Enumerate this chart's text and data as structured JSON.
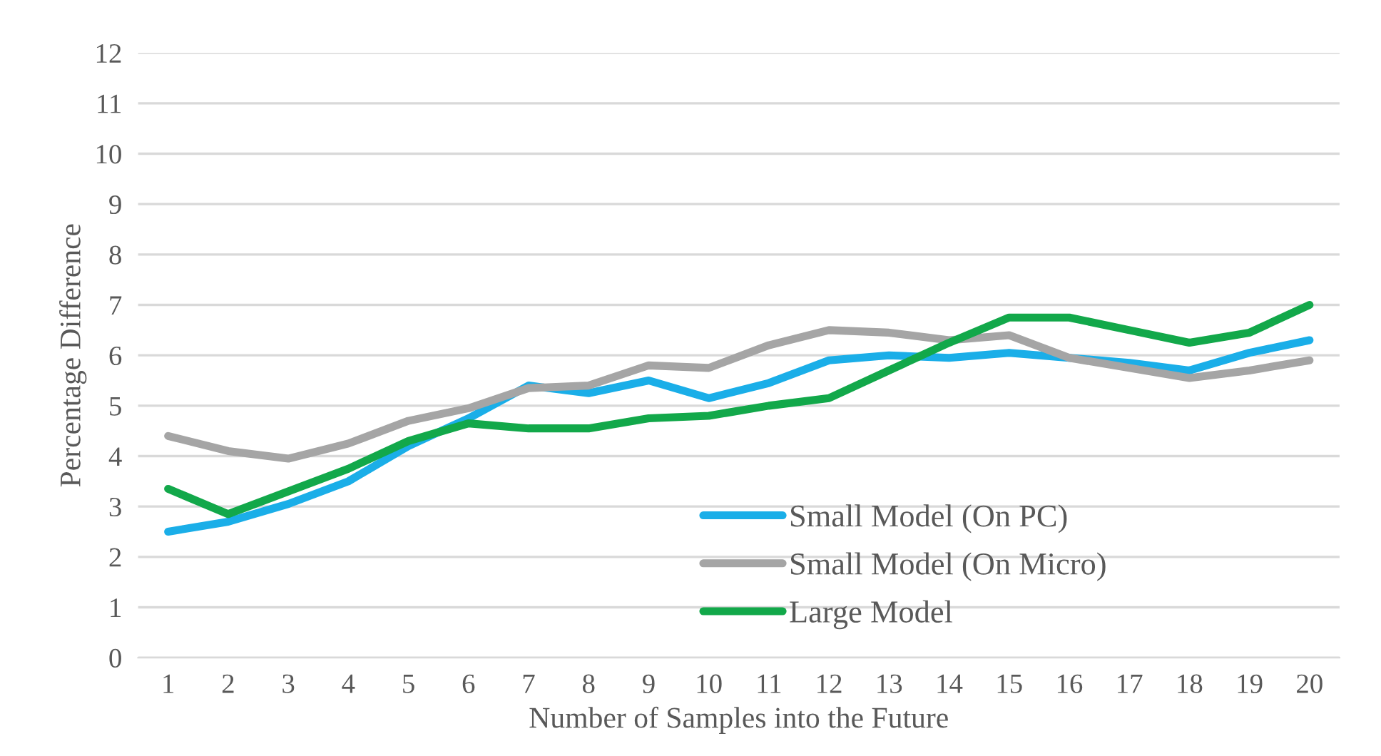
{
  "chart_data": {
    "type": "line",
    "xlabel": "Number of Samples into the Future",
    "ylabel": "Percentage Difference",
    "categories": [
      "1",
      "2",
      "3",
      "4",
      "5",
      "6",
      "7",
      "8",
      "9",
      "10",
      "11",
      "12",
      "13",
      "14",
      "15",
      "16",
      "17",
      "18",
      "19",
      "20"
    ],
    "series": [
      {
        "name": "Small Model (On PC)",
        "color": "#1aaee8",
        "values": [
          2.5,
          2.7,
          3.05,
          3.5,
          4.2,
          4.75,
          5.4,
          5.25,
          5.5,
          5.15,
          5.45,
          5.9,
          6.0,
          5.95,
          6.05,
          5.95,
          5.85,
          5.7,
          6.05,
          6.3
        ]
      },
      {
        "name": "Small Model (On Micro)",
        "color": "#a5a5a5",
        "values": [
          4.4,
          4.1,
          3.95,
          4.25,
          4.7,
          4.95,
          5.35,
          5.4,
          5.8,
          5.75,
          6.2,
          6.5,
          6.45,
          6.3,
          6.4,
          5.95,
          5.75,
          5.55,
          5.7,
          5.9
        ]
      },
      {
        "name": "Large Model",
        "color": "#12a84a",
        "values": [
          3.35,
          2.85,
          3.3,
          3.75,
          4.3,
          4.65,
          4.55,
          4.55,
          4.75,
          4.8,
          5.0,
          5.15,
          5.7,
          6.25,
          6.75,
          6.75,
          6.5,
          6.25,
          6.45,
          7.0
        ]
      }
    ],
    "ylim": [
      0,
      12
    ],
    "yticks": [
      0,
      1,
      2,
      3,
      4,
      5,
      6,
      7,
      8,
      9,
      10,
      11,
      12
    ],
    "grid": "y",
    "legend": "bottom right",
    "marker": "none",
    "line_style": "solid"
  }
}
